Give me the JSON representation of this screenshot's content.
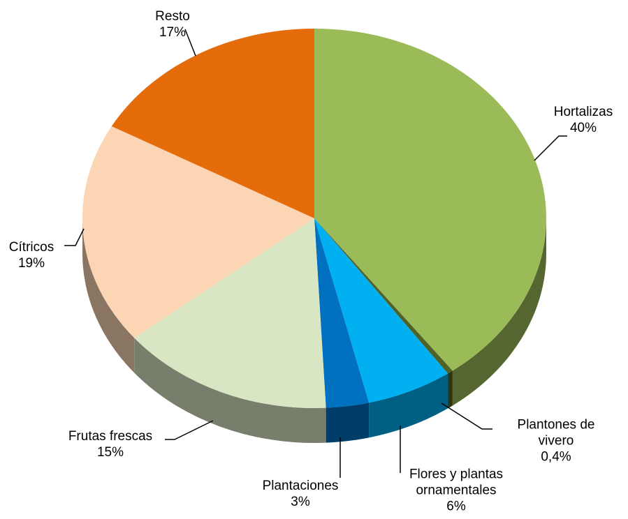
{
  "chart_data": {
    "type": "pie",
    "categories": [
      "Hortalizas",
      "Plantones de vivero",
      "Flores y plantas ornamentales",
      "Plantaciones",
      "Frutas frescas",
      "Cítricos",
      "Resto"
    ],
    "values": [
      40,
      0.4,
      6,
      3,
      15,
      19,
      17
    ],
    "value_labels": [
      "40%",
      "0,4%",
      "6%",
      "3%",
      "15%",
      "19%",
      "17%"
    ],
    "colors": [
      "#9bbb59",
      "#4f6228",
      "#00b0f0",
      "#0070c0",
      "#d9e6c3",
      "#fcd5b5",
      "#e46c0a"
    ]
  }
}
